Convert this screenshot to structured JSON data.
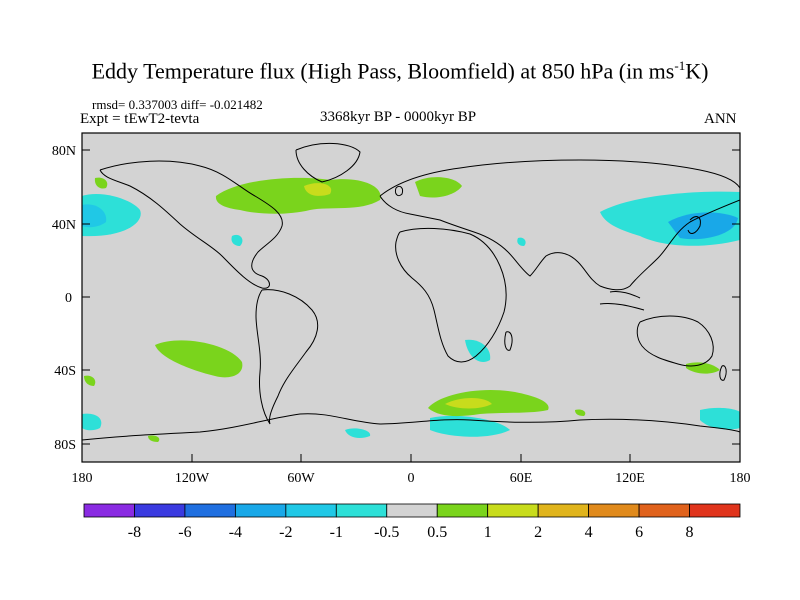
{
  "title": {
    "main": "Eddy Temperature flux (High Pass, Bloomfield) at 850 hPa (in ms",
    "sup": "-1",
    "unit_tail": "K)"
  },
  "stats": "rmsd= 0.337003 diff= -0.021482",
  "experiment": "Expt = tEwT2-tevta",
  "period": "3368kyr BP - 0000kyr BP",
  "season": "ANN",
  "lat_ticks": [
    "80N",
    "40N",
    "0",
    "40S",
    "80S"
  ],
  "lon_ticks": [
    "180",
    "120W",
    "60W",
    "0",
    "60E",
    "120E",
    "180"
  ],
  "colorbar": {
    "labels": [
      "-8",
      "-6",
      "-4",
      "-2",
      "-1",
      "-0.5",
      "0.5",
      "1",
      "2",
      "4",
      "6",
      "8"
    ],
    "colors": [
      "#8a2be2",
      "#3a3ae0",
      "#1f6fe0",
      "#19a8e8",
      "#20c8e6",
      "#2de0d8",
      "#d3d3d3",
      "#7ad41c",
      "#c8dc1c",
      "#e0b41c",
      "#e08a1c",
      "#e0621c",
      "#e0341c"
    ]
  },
  "map_colors": {
    "background": "#d3d3d3",
    "coast": "#000000"
  }
}
